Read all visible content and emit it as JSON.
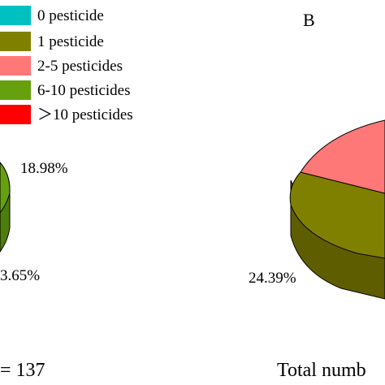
{
  "chart_data": [
    {
      "type": "pie",
      "panel": "",
      "visible_labels": [
        "18.98%",
        "3.65%"
      ],
      "total_text": "= 137"
    },
    {
      "type": "pie",
      "panel": "B",
      "visible_labels": [
        "24.39%"
      ],
      "total_text": "Total numb"
    }
  ],
  "legend": {
    "items": [
      {
        "label": "0 pesticide",
        "color": "#00C0C0"
      },
      {
        "label": "1 pesticide",
        "color": "#808000"
      },
      {
        "label": "2-5 pesticides",
        "color": "#FF7878"
      },
      {
        "label": "6-10 pesticides",
        "color": "#66A00F"
      },
      {
        "label": "＞10 pesticides",
        "color": "#FF0000"
      }
    ]
  },
  "colors": {
    "olive_side": "#5E5E00",
    "green_side": "#4E7D0A"
  }
}
